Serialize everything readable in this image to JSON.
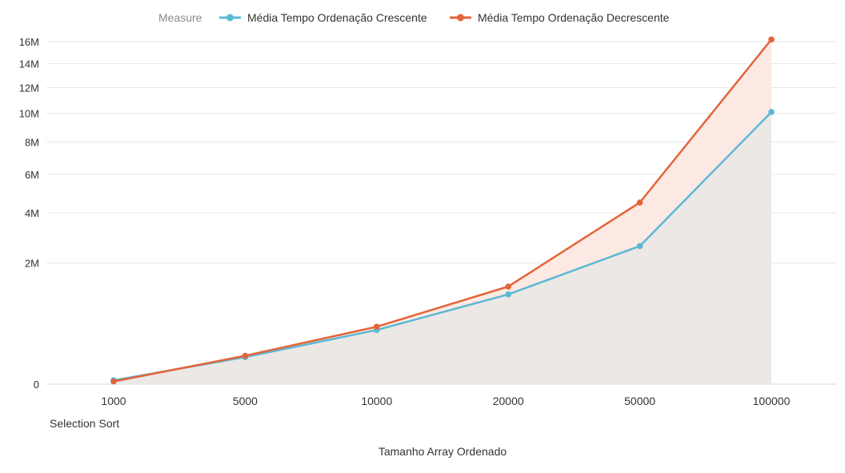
{
  "chart_data": {
    "type": "line",
    "legend": {
      "title": "Measure",
      "position": "top"
    },
    "categories": [
      "1000",
      "5000",
      "10000",
      "20000",
      "50000",
      "100000"
    ],
    "series": [
      {
        "name": "Média Tempo Ordenação Crescente",
        "color": "#5bb8d4",
        "fill": "#ece8e6",
        "values": [
          2000,
          100000,
          400000,
          1100000,
          2600000,
          10100000
        ]
      },
      {
        "name": "Média Tempo Ordenação Decrescente",
        "color": "#e4643a",
        "fill": "#fce9e3",
        "values": [
          1000,
          110000,
          450000,
          1300000,
          4500000,
          16200000
        ]
      }
    ],
    "yaxis": {
      "scale": "sqrt",
      "ticks": [
        0,
        2000000,
        4000000,
        6000000,
        8000000,
        10000000,
        12000000,
        14000000,
        16000000
      ],
      "tick_labels": [
        "0",
        "2M",
        "4M",
        "6M",
        "8M",
        "10M",
        "12M",
        "14M",
        "16M"
      ],
      "ylim": [
        0,
        16000000
      ]
    },
    "grid": true,
    "chart_title": "Selection Sort",
    "xlabel": "Tamanho Array Ordenado"
  }
}
